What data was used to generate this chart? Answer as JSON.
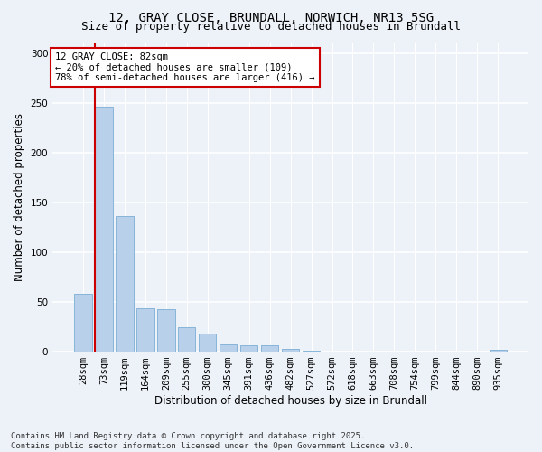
{
  "title1": "12, GRAY CLOSE, BRUNDALL, NORWICH, NR13 5SG",
  "title2": "Size of property relative to detached houses in Brundall",
  "xlabel": "Distribution of detached houses by size in Brundall",
  "ylabel": "Number of detached properties",
  "categories": [
    "28sqm",
    "73sqm",
    "119sqm",
    "164sqm",
    "209sqm",
    "255sqm",
    "300sqm",
    "345sqm",
    "391sqm",
    "436sqm",
    "482sqm",
    "527sqm",
    "572sqm",
    "618sqm",
    "663sqm",
    "708sqm",
    "754sqm",
    "799sqm",
    "844sqm",
    "890sqm",
    "935sqm"
  ],
  "values": [
    58,
    246,
    136,
    44,
    43,
    25,
    18,
    7,
    6,
    6,
    3,
    1,
    0,
    0,
    0,
    0,
    0,
    0,
    0,
    0,
    2
  ],
  "bar_color": "#b8d0ea",
  "bar_edge_color": "#7aadd4",
  "vline_color": "#cc0000",
  "annotation_text": "12 GRAY CLOSE: 82sqm\n← 20% of detached houses are smaller (109)\n78% of semi-detached houses are larger (416) →",
  "annotation_box_color": "#ffffff",
  "annotation_box_edge_color": "#cc0000",
  "ylim": [
    0,
    310
  ],
  "yticks": [
    0,
    50,
    100,
    150,
    200,
    250,
    300
  ],
  "footnote": "Contains HM Land Registry data © Crown copyright and database right 2025.\nContains public sector information licensed under the Open Government Licence v3.0.",
  "background_color": "#edf2f9",
  "grid_color": "#ffffff",
  "title_fontsize": 10,
  "subtitle_fontsize": 9,
  "axis_label_fontsize": 8.5,
  "tick_fontsize": 7.5,
  "annotation_fontsize": 7.5,
  "footnote_fontsize": 6.5
}
